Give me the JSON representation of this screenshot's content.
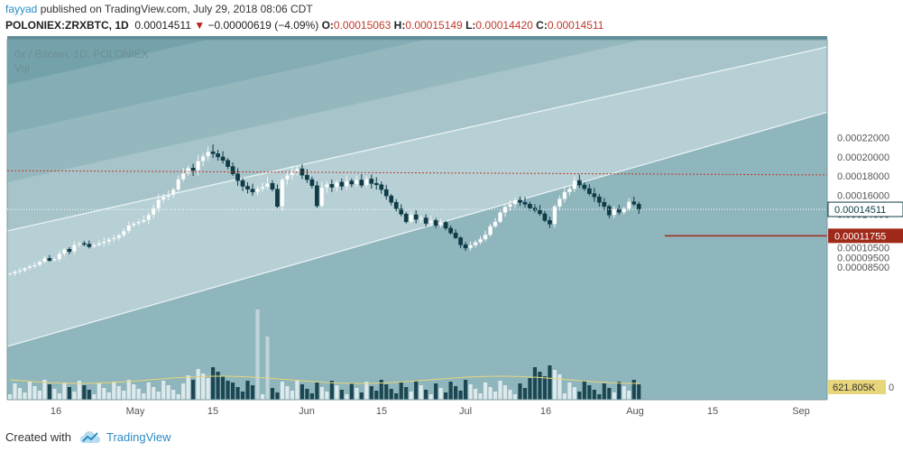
{
  "header": {
    "user": "fayyad",
    "published": " published on TradingView.com, July 29, 2018 08:06 CDT",
    "symbol": "POLONIEX:ZRXBTC, 1D",
    "last": "0.00014511",
    "arrow": "▼",
    "change": "−0.00000619 (−4.09%)",
    "o_label": "O:",
    "o": "0.00015063",
    "h_label": "H:",
    "h": "0.00015149",
    "l_label": "L:",
    "l": "0.00014420",
    "c_label": "C:",
    "c": "0.00014511"
  },
  "footer": {
    "created": "Created with",
    "brand": "TradingView"
  },
  "colors": {
    "up": "#ffffff",
    "down": "#0f3b46",
    "bg": "#9cbcc3",
    "band_light": "#b6d0d5",
    "band_mid": "#8fb3ba",
    "band_dark": "#6a9aa3",
    "resistance": "#c0392b",
    "volume_ma": "#e8d67a"
  },
  "chart_data": {
    "type": "candlestick",
    "title": "0x / Bitcoin, 1D, POLONIEX",
    "subtitle": "Vol",
    "y_ticks": [
      "0.00022000",
      "0.00020000",
      "0.00018000",
      "0.00016000",
      "0.00014000",
      "0.00010500",
      "0.00009500",
      "0.00008500"
    ],
    "ylim": [
      8e-05,
      0.000228
    ],
    "x_ticks": [
      "16",
      "May",
      "15",
      "Jun",
      "15",
      "Jul",
      "16",
      "Aug",
      "15",
      "Sep"
    ],
    "last_price_label": "0.00014511",
    "support_label": "0.00011755",
    "volume_label": "621.805K",
    "volume_zero_label": "0",
    "resistance_level": 0.0001855,
    "resistance_end": 0.000181,
    "support_level": 0.00011755,
    "closes": [
      7.82e-05,
      8.02e-05,
      8.15e-05,
      8.38e-05,
      8.56e-05,
      8.71e-05,
      9.05e-05,
      9.4e-05,
      9.18e-05,
      9.31e-05,
      9.88e-05,
      0.0001035,
      0.000101,
      0.0001082,
      0.0001095,
      0.0001088,
      0.0001062,
      0.000108,
      0.0001098,
      0.0001115,
      0.0001138,
      0.0001152,
      0.0001182,
      0.0001225,
      0.0001285,
      0.0001305,
      0.0001322,
      0.0001342,
      0.0001395,
      0.0001462,
      0.0001552,
      0.0001582,
      0.0001602,
      0.0001658,
      0.0001765,
      0.0001825,
      0.0001882,
      0.0001858,
      0.0001955,
      0.0002005,
      0.0002052,
      0.0002032,
      0.0001998,
      0.0001962,
      0.0001898,
      0.0001822,
      0.0001752,
      0.0001692,
      0.0001662,
      0.0001632,
      0.0001665,
      0.0001685,
      0.0001722,
      0.0001662,
      0.0001482,
      0.0001762,
      0.0001808,
      0.0001848,
      0.0001875,
      0.0001808,
      0.0001762,
      0.0001698,
      0.0001488,
      0.0001678,
      0.0001712,
      0.0001682,
      0.0001735,
      0.0001692,
      0.0001748,
      0.0001715,
      0.0001758,
      0.0001702,
      0.0001768,
      0.0001722,
      0.0001708,
      0.0001658,
      0.0001592,
      0.0001525,
      0.0001458,
      0.0001402,
      0.0001322,
      0.0001395,
      0.0001348,
      0.0001362,
      0.0001305,
      0.0001335,
      0.0001285,
      0.0001315,
      0.0001255,
      0.0001205,
      0.0001155,
      0.0001082,
      0.0001048,
      0.0001078,
      0.0001108,
      0.000114,
      0.0001185,
      0.0001275,
      0.0001322,
      0.0001418,
      0.0001478,
      0.0001505,
      0.0001548,
      0.0001525,
      0.0001505,
      0.0001465,
      0.0001442,
      0.0001405,
      0.0001335,
      0.0001298,
      0.0001482,
      0.000156,
      0.0001632,
      0.0001665,
      0.0001752,
      0.0001705,
      0.0001668,
      0.0001615,
      0.0001582,
      0.0001525,
      0.0001482,
      0.0001392,
      0.0001452,
      0.0001422,
      0.0001458,
      0.000153,
      0.0001506,
      0.0001451
    ]
  }
}
